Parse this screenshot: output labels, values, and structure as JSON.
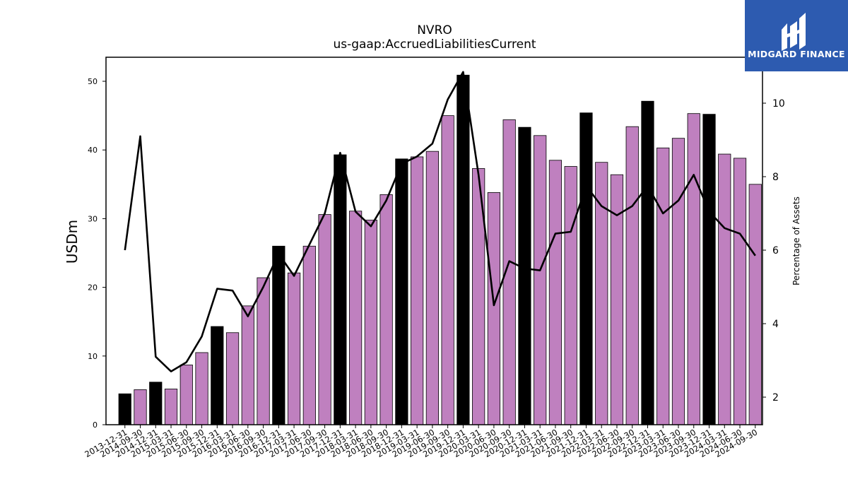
{
  "brand": {
    "name": "MIDGARD FINANCE",
    "bg_color": "#2d5bb0"
  },
  "chart_data": {
    "type": "bar",
    "title": "NVRO",
    "subtitle": "us-gaap:AccruedLiabilitiesCurrent",
    "ylabel": "USDm",
    "ylabel_right": "Percentage of Assets",
    "ylim": [
      0,
      53.5
    ],
    "ylim_right": [
      1.25,
      11.25
    ],
    "yticks": [
      0,
      10,
      20,
      30,
      40,
      50
    ],
    "yticks_right": [
      2,
      4,
      6,
      8,
      10
    ],
    "bar_color": "#bf80bf",
    "highlight_color": "#000000",
    "line_color": "#000000",
    "categories": [
      "2013-12-31",
      "2014-09-30",
      "2014-12-31",
      "2015-03-31",
      "2015-06-30",
      "2015-09-30",
      "2015-12-31",
      "2016-03-31",
      "2016-06-30",
      "2016-09-30",
      "2016-12-31",
      "2017-03-31",
      "2017-06-30",
      "2017-09-30",
      "2017-12-31",
      "2018-03-31",
      "2018-06-30",
      "2018-09-30",
      "2018-12-31",
      "2019-03-31",
      "2019-06-30",
      "2019-09-30",
      "2019-12-31",
      "2020-03-31",
      "2020-06-30",
      "2020-09-30",
      "2020-12-31",
      "2021-03-31",
      "2021-06-30",
      "2021-09-30",
      "2021-12-31",
      "2022-03-31",
      "2022-06-30",
      "2022-09-30",
      "2022-12-31",
      "2023-03-31",
      "2023-06-30",
      "2023-09-30",
      "2023-12-31",
      "2024-03-31",
      "2024-06-30",
      "2024-09-30"
    ],
    "values": [
      4.5,
      5.1,
      6.2,
      5.2,
      8.7,
      10.5,
      14.3,
      13.4,
      17.3,
      21.4,
      26.0,
      22.1,
      26.0,
      30.6,
      39.3,
      31.1,
      29.8,
      33.5,
      38.7,
      39.0,
      39.8,
      45.0,
      50.9,
      37.3,
      33.8,
      44.4,
      43.3,
      42.1,
      38.5,
      37.6,
      45.4,
      38.2,
      36.4,
      43.4,
      47.1,
      40.3,
      41.7,
      45.3,
      45.2,
      39.4,
      38.8,
      35.0
    ],
    "highlighted": [
      true,
      false,
      true,
      false,
      false,
      false,
      true,
      false,
      false,
      false,
      true,
      false,
      false,
      false,
      true,
      false,
      false,
      false,
      true,
      false,
      false,
      false,
      true,
      false,
      false,
      false,
      true,
      false,
      false,
      false,
      true,
      false,
      false,
      false,
      true,
      false,
      false,
      false,
      true,
      false,
      false,
      false
    ],
    "series": [
      {
        "values_right": [
          6.0,
          9.1,
          3.1,
          2.7,
          2.95,
          3.65,
          4.95,
          4.9,
          4.2,
          5.0,
          5.9,
          5.3,
          6.15,
          7.0,
          8.65,
          7.05,
          6.65,
          7.35,
          8.35,
          8.55,
          8.9,
          10.1,
          10.85,
          8.05,
          4.5,
          5.7,
          5.5,
          5.45,
          6.45,
          6.5,
          7.75,
          7.2,
          6.95,
          7.2,
          7.75,
          7.0,
          7.35,
          8.05,
          7.05,
          6.6,
          6.45,
          5.85
        ]
      }
    ]
  }
}
